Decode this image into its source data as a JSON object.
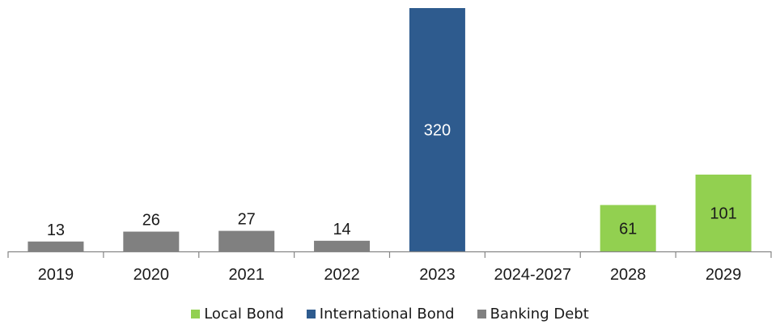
{
  "chart_data": {
    "type": "bar",
    "title": "",
    "xlabel": "",
    "ylabel": "",
    "categories": [
      "2019",
      "2020",
      "2021",
      "2022",
      "2023",
      "2024-2027",
      "2028",
      "2029"
    ],
    "series": [
      {
        "name": "Local Bond",
        "color": "#92d050",
        "values": [
          null,
          null,
          null,
          null,
          null,
          null,
          61,
          101
        ]
      },
      {
        "name": "International Bond",
        "color": "#2e5b8e",
        "values": [
          null,
          null,
          null,
          null,
          320,
          null,
          null,
          null
        ]
      },
      {
        "name": "Banking Debt",
        "color": "#808080",
        "values": [
          13,
          26,
          27,
          14,
          null,
          null,
          null,
          null
        ]
      }
    ],
    "ylim": [
      0,
      320
    ],
    "grid": false,
    "legend": "bottom",
    "data_labels": [
      {
        "category": "2019",
        "text": "13",
        "series": "Banking Debt",
        "label_position": "outside"
      },
      {
        "category": "2020",
        "text": "26",
        "series": "Banking Debt",
        "label_position": "outside"
      },
      {
        "category": "2021",
        "text": "27",
        "series": "Banking Debt",
        "label_position": "outside"
      },
      {
        "category": "2022",
        "text": "14",
        "series": "Banking Debt",
        "label_position": "outside"
      },
      {
        "category": "2023",
        "text": "320",
        "series": "International Bond",
        "label_position": "inside",
        "text_color": "#ffffff"
      },
      {
        "category": "2028",
        "text": "61",
        "series": "Local Bond",
        "label_position": "inside",
        "text_color": "#1a1a1a"
      },
      {
        "category": "2029",
        "text": "101",
        "series": "Local Bond",
        "label_position": "inside",
        "text_color": "#1a1a1a"
      }
    ]
  }
}
